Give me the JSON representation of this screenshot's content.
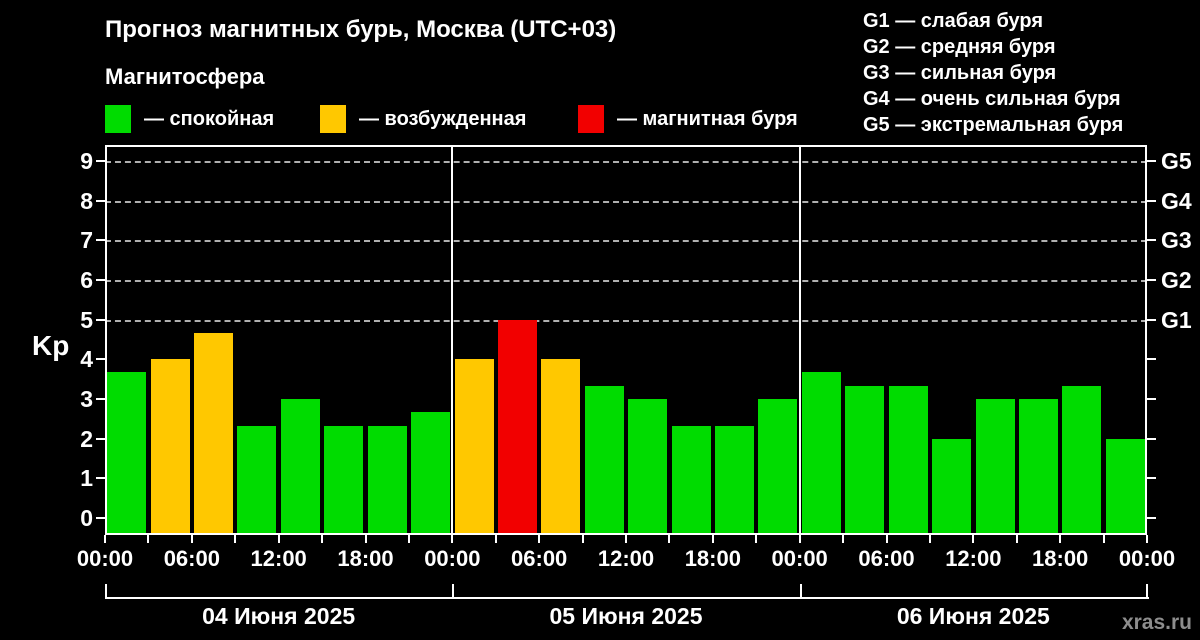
{
  "title": "Прогноз магнитных бурь, Москва (UTC+03)",
  "subtitle": "Магнитосфера",
  "legend": {
    "items": [
      {
        "key": "quiet",
        "label": "— спокойная",
        "color": "#00DC00"
      },
      {
        "key": "excited",
        "label": "— возбужденная",
        "color": "#FFC800"
      },
      {
        "key": "storm",
        "label": "— магнитная буря",
        "color": "#F20000"
      }
    ]
  },
  "storm_scale_legend": [
    {
      "label": "G1 — слабая буря"
    },
    {
      "label": "G2 — средняя буря"
    },
    {
      "label": "G3 — сильная буря"
    },
    {
      "label": "G4 — очень сильная буря"
    },
    {
      "label": "G5 — экстремальная буря"
    }
  ],
  "watermark": "xras.ru",
  "chart_data": {
    "type": "bar",
    "title": "Прогноз магнитных бурь, Москва (UTC+03)",
    "ylabel": "Kp",
    "ylim": [
      0,
      9
    ],
    "yticks": [
      0,
      1,
      2,
      3,
      4,
      5,
      6,
      7,
      8,
      9
    ],
    "grid_levels": [
      5,
      6,
      7,
      8,
      9
    ],
    "grid_style": "dashed",
    "right_axis_labels": [
      {
        "value": 5,
        "label": "G1"
      },
      {
        "value": 6,
        "label": "G2"
      },
      {
        "value": 7,
        "label": "G3"
      },
      {
        "value": 8,
        "label": "G4"
      },
      {
        "value": 9,
        "label": "G5"
      }
    ],
    "interval_hours": 3,
    "x_tick_labels": [
      "00:00",
      "06:00",
      "12:00",
      "18:00",
      "00:00",
      "06:00",
      "12:00",
      "18:00",
      "00:00",
      "06:00",
      "12:00",
      "18:00",
      "00:00"
    ],
    "days": [
      {
        "date": "04 Июня 2025",
        "values": [
          3.67,
          4.0,
          4.67,
          2.33,
          3.0,
          2.33,
          2.33,
          2.67
        ],
        "status": [
          "quiet",
          "excited",
          "excited",
          "quiet",
          "quiet",
          "quiet",
          "quiet",
          "quiet"
        ]
      },
      {
        "date": "05 Июня 2025",
        "values": [
          4.0,
          5.0,
          4.0,
          3.33,
          3.0,
          2.33,
          2.33,
          3.0
        ],
        "status": [
          "excited",
          "storm",
          "excited",
          "quiet",
          "quiet",
          "quiet",
          "quiet",
          "quiet"
        ]
      },
      {
        "date": "06 Июня 2025",
        "values": [
          3.67,
          3.33,
          3.33,
          2.0,
          3.0,
          3.0,
          3.33,
          2.0
        ],
        "status": [
          "quiet",
          "quiet",
          "quiet",
          "quiet",
          "quiet",
          "quiet",
          "quiet",
          "quiet"
        ]
      }
    ]
  }
}
